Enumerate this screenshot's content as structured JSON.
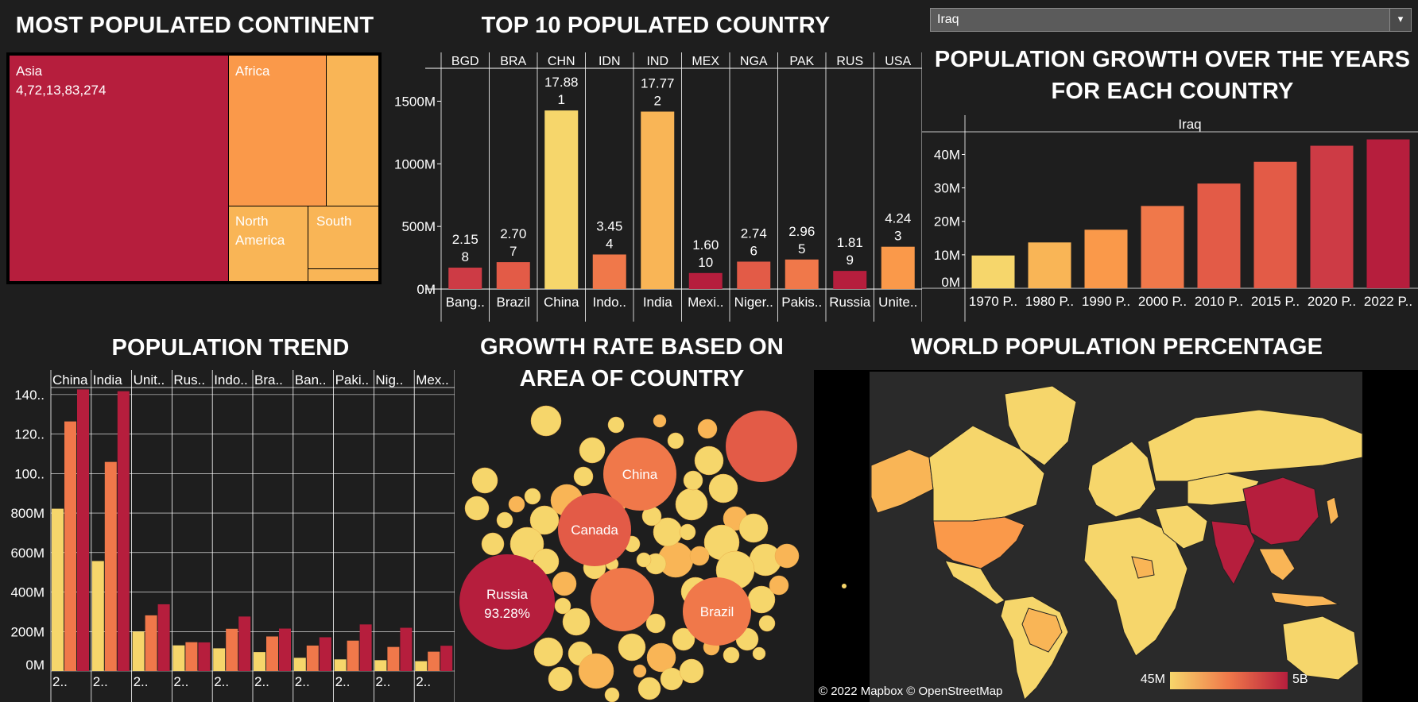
{
  "colors": {
    "bg": "#1e1e1e",
    "ramp": [
      "#f6d66b",
      "#f9b556",
      "#fa994a",
      "#f0784a",
      "#e35b47",
      "#cd3b45",
      "#b61e3d"
    ],
    "grid": "#ffffff"
  },
  "filter": {
    "selected": "Iraq",
    "icon": "chevron-down-icon"
  },
  "titles": {
    "continent": "MOST POPULATED CONTINENT",
    "top10": "TOP 10 POPULATED COUNTRY",
    "growth_line1": "POPULATION GROWTH OVER THE YEARS",
    "growth_line2": "FOR EACH COUNTRY",
    "trend": "POPULATION TREND",
    "area_line1": "GROWTH RATE BASED ON",
    "area_line2": "AREA OF COUNTRY",
    "world": "WORLD POPULATION PERCENTAGE"
  },
  "treemap": {
    "tiles": [
      {
        "name": "Asia",
        "value_label": "4,72,13,83,274",
        "color": "#b61e3d"
      },
      {
        "name": "Africa",
        "value_label": "",
        "color": "#fa994a"
      },
      {
        "name": "",
        "value_label": "",
        "color": "#f9b556"
      },
      {
        "name": "North America",
        "value_label": "",
        "color": "#f9b556"
      },
      {
        "name": "South",
        "value_label": "",
        "color": "#f9b556"
      },
      {
        "name": "",
        "value_label": "",
        "color": "#f9b556"
      }
    ]
  },
  "chart_data": [
    {
      "id": "top10",
      "type": "bar",
      "codes": [
        "BGD",
        "BRA",
        "CHN",
        "IDN",
        "IND",
        "MEX",
        "NGA",
        "PAK",
        "RUS",
        "USA"
      ],
      "categories": [
        "Bang..",
        "Brazil",
        "China",
        "Indo..",
        "India",
        "Mexi..",
        "Niger..",
        "Pakis..",
        "Russia",
        "Unite.."
      ],
      "values": [
        171,
        215,
        1426,
        276,
        1417,
        128,
        219,
        236,
        145,
        338
      ],
      "labels": [
        "2.15\n8",
        "2.70\n7",
        "17.88\n1",
        "3.45\n4",
        "17.77\n2",
        "1.60\n10",
        "2.74\n6",
        "2.96\n5",
        "1.81\n9",
        "4.24\n3"
      ],
      "colors": [
        "#cd3b45",
        "#e35b47",
        "#f6d66b",
        "#f0784a",
        "#f9b556",
        "#b61e3d",
        "#e35b47",
        "#f0784a",
        "#b61e3d",
        "#fa994a"
      ],
      "yticks": [
        "0M",
        "500M",
        "1000M",
        "1500M"
      ],
      "ytick_values": [
        0,
        500,
        1000,
        1500
      ],
      "ylim": [
        0,
        1750
      ]
    },
    {
      "id": "growth",
      "type": "bar",
      "header": "Iraq",
      "categories": [
        "1970 P..",
        "1980 P..",
        "1990 P..",
        "2000 P..",
        "2010 P..",
        "2015 P..",
        "2020 P..",
        "2022 P.."
      ],
      "values": [
        9.8,
        13.7,
        17.5,
        24.6,
        31.3,
        37.8,
        42.6,
        44.5
      ],
      "colors": [
        "#f6d66b",
        "#f9b556",
        "#fa994a",
        "#f0784a",
        "#e35b47",
        "#e35b47",
        "#cd3b45",
        "#b61e3d"
      ],
      "yticks": [
        "0M",
        "10M",
        "20M",
        "30M",
        "40M"
      ],
      "ytick_values": [
        0,
        10,
        20,
        30,
        40
      ],
      "ylim": [
        0,
        47
      ]
    },
    {
      "id": "trend",
      "type": "bar",
      "columns": [
        "China",
        "India",
        "Unit..",
        "Rus..",
        "Indo..",
        "Bra..",
        "Ban..",
        "Paki..",
        "Nig..",
        "Mex.."
      ],
      "xlabels": [
        "2..",
        "2..",
        "2..",
        "2..",
        "2..",
        "2..",
        "2..",
        "2..",
        "2..",
        "2.."
      ],
      "series": [
        {
          "values": [
            822,
            557,
            200,
            130,
            115,
            96,
            67,
            59,
            55,
            50
          ],
          "color": "#f6d66b"
        },
        {
          "values": [
            1264,
            1059,
            282,
            146,
            214,
            175,
            129,
            154,
            122,
            98
          ],
          "color": "#f0784a"
        },
        {
          "values": [
            1426,
            1417,
            338,
            145,
            276,
            215,
            171,
            236,
            219,
            128
          ],
          "color": "#b61e3d"
        }
      ],
      "yticks": [
        "0M",
        "200M",
        "400M",
        "600M",
        "800M",
        "100..",
        "120..",
        "140.."
      ],
      "ytick_values": [
        0,
        200,
        400,
        600,
        800,
        1000,
        1200,
        1400
      ],
      "ylim": [
        0,
        1500
      ]
    },
    {
      "id": "area",
      "type": "scatter",
      "labeled": [
        {
          "name": "Russia",
          "value": "93.28%"
        },
        {
          "name": "China",
          "value": ""
        },
        {
          "name": "Canada",
          "value": ""
        },
        {
          "name": "Brazil",
          "value": ""
        }
      ]
    }
  ],
  "map": {
    "legend_min": "45M",
    "legend_max": "5B",
    "credit": "© 2022 Mapbox © OpenStreetMap"
  }
}
